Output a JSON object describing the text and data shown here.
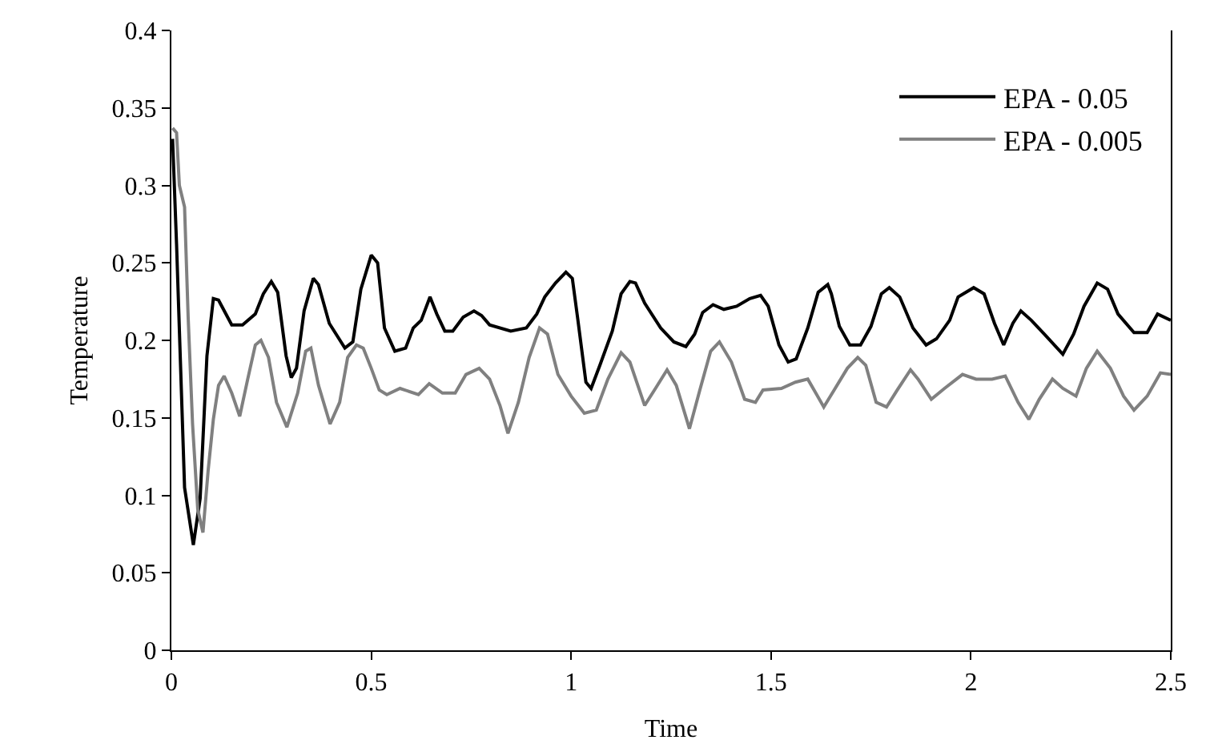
{
  "chart_data": {
    "type": "line",
    "xlabel": "Time",
    "ylabel": "Temperature",
    "xlim": [
      0,
      2.5
    ],
    "xticks": [
      0,
      0.5,
      1,
      1.5,
      2,
      2.5
    ],
    "ylim": [
      0,
      0.4
    ],
    "yticks": [
      0,
      0.05,
      0.1,
      0.15,
      0.2,
      0.25,
      0.3,
      0.35,
      0.4
    ],
    "grid": false,
    "legend": "top right",
    "marker": "none",
    "line_style": "solid",
    "series": [
      {
        "name": "EPA - 0.05",
        "color": "#000000",
        "x": [
          0.003,
          0.013,
          0.033,
          0.055,
          0.072,
          0.089,
          0.105,
          0.118,
          0.151,
          0.178,
          0.21,
          0.23,
          0.25,
          0.266,
          0.287,
          0.3,
          0.313,
          0.332,
          0.355,
          0.368,
          0.395,
          0.434,
          0.454,
          0.474,
          0.5,
          0.516,
          0.533,
          0.559,
          0.586,
          0.605,
          0.625,
          0.647,
          0.664,
          0.684,
          0.704,
          0.73,
          0.757,
          0.776,
          0.796,
          0.849,
          0.888,
          0.914,
          0.934,
          0.961,
          0.987,
          1.003,
          1.016,
          1.037,
          1.05,
          1.072,
          1.103,
          1.125,
          1.147,
          1.161,
          1.184,
          1.224,
          1.257,
          1.287,
          1.309,
          1.329,
          1.355,
          1.382,
          1.414,
          1.447,
          1.474,
          1.493,
          1.52,
          1.543,
          1.563,
          1.592,
          1.618,
          1.642,
          1.651,
          1.671,
          1.697,
          1.724,
          1.75,
          1.776,
          1.796,
          1.822,
          1.855,
          1.888,
          1.914,
          1.947,
          1.968,
          2.007,
          2.033,
          2.059,
          2.082,
          2.105,
          2.125,
          2.151,
          2.184,
          2.23,
          2.257,
          2.283,
          2.316,
          2.342,
          2.368,
          2.408,
          2.441,
          2.467,
          2.5
        ],
        "values": [
          0.33,
          0.262,
          0.105,
          0.068,
          0.098,
          0.19,
          0.227,
          0.226,
          0.21,
          0.21,
          0.217,
          0.23,
          0.238,
          0.231,
          0.19,
          0.176,
          0.182,
          0.219,
          0.24,
          0.236,
          0.211,
          0.195,
          0.199,
          0.233,
          0.255,
          0.25,
          0.208,
          0.193,
          0.195,
          0.208,
          0.213,
          0.228,
          0.217,
          0.206,
          0.206,
          0.215,
          0.219,
          0.216,
          0.21,
          0.206,
          0.208,
          0.217,
          0.228,
          0.237,
          0.244,
          0.24,
          0.215,
          0.173,
          0.169,
          0.184,
          0.206,
          0.23,
          0.238,
          0.237,
          0.224,
          0.208,
          0.199,
          0.196,
          0.204,
          0.218,
          0.223,
          0.22,
          0.222,
          0.227,
          0.229,
          0.222,
          0.197,
          0.186,
          0.188,
          0.208,
          0.231,
          0.236,
          0.23,
          0.209,
          0.197,
          0.197,
          0.209,
          0.23,
          0.234,
          0.228,
          0.208,
          0.197,
          0.201,
          0.213,
          0.228,
          0.234,
          0.23,
          0.211,
          0.197,
          0.211,
          0.219,
          0.213,
          0.204,
          0.191,
          0.204,
          0.222,
          0.237,
          0.233,
          0.217,
          0.205,
          0.205,
          0.217,
          0.213
        ]
      },
      {
        "name": "EPA - 0.005",
        "color": "#808080",
        "x": [
          0.003,
          0.013,
          0.02,
          0.033,
          0.042,
          0.053,
          0.066,
          0.079,
          0.092,
          0.105,
          0.118,
          0.132,
          0.151,
          0.171,
          0.191,
          0.21,
          0.224,
          0.243,
          0.263,
          0.289,
          0.316,
          0.336,
          0.349,
          0.368,
          0.397,
          0.421,
          0.441,
          0.463,
          0.48,
          0.5,
          0.52,
          0.539,
          0.572,
          0.618,
          0.645,
          0.678,
          0.71,
          0.737,
          0.77,
          0.796,
          0.822,
          0.842,
          0.868,
          0.895,
          0.921,
          0.941,
          0.967,
          1.0,
          1.033,
          1.063,
          1.092,
          1.125,
          1.147,
          1.184,
          1.211,
          1.24,
          1.263,
          1.296,
          1.322,
          1.349,
          1.371,
          1.401,
          1.434,
          1.461,
          1.48,
          1.526,
          1.561,
          1.592,
          1.632,
          1.658,
          1.691,
          1.717,
          1.737,
          1.763,
          1.789,
          1.816,
          1.849,
          1.868,
          1.901,
          1.934,
          1.979,
          2.013,
          2.053,
          2.086,
          2.118,
          2.145,
          2.171,
          2.204,
          2.23,
          2.263,
          2.289,
          2.316,
          2.349,
          2.382,
          2.408,
          2.441,
          2.474,
          2.5
        ],
        "values": [
          0.337,
          0.334,
          0.3,
          0.286,
          0.215,
          0.146,
          0.091,
          0.076,
          0.116,
          0.149,
          0.171,
          0.177,
          0.166,
          0.151,
          0.175,
          0.197,
          0.2,
          0.189,
          0.16,
          0.144,
          0.166,
          0.193,
          0.195,
          0.171,
          0.146,
          0.16,
          0.189,
          0.197,
          0.195,
          0.182,
          0.168,
          0.165,
          0.169,
          0.165,
          0.172,
          0.166,
          0.166,
          0.178,
          0.182,
          0.175,
          0.158,
          0.14,
          0.16,
          0.189,
          0.208,
          0.204,
          0.178,
          0.164,
          0.153,
          0.155,
          0.175,
          0.192,
          0.186,
          0.158,
          0.169,
          0.181,
          0.171,
          0.143,
          0.168,
          0.193,
          0.199,
          0.186,
          0.162,
          0.16,
          0.168,
          0.169,
          0.173,
          0.175,
          0.157,
          0.168,
          0.182,
          0.189,
          0.184,
          0.16,
          0.157,
          0.168,
          0.181,
          0.175,
          0.162,
          0.169,
          0.178,
          0.175,
          0.175,
          0.177,
          0.16,
          0.149,
          0.162,
          0.175,
          0.169,
          0.164,
          0.182,
          0.193,
          0.182,
          0.164,
          0.155,
          0.164,
          0.179,
          0.178
        ]
      }
    ]
  }
}
